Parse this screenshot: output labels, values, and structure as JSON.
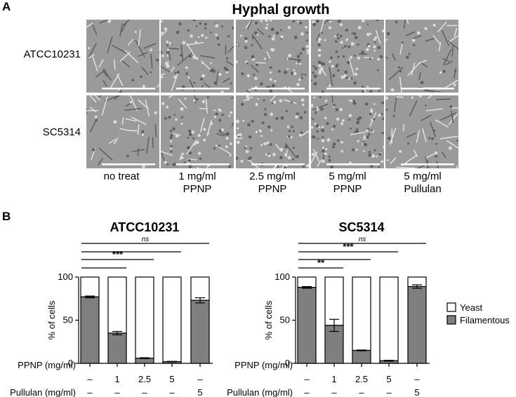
{
  "panel_a": {
    "letter": "A",
    "title": "Hyphal growth",
    "rows": [
      "ATCC10231",
      "SC5314"
    ],
    "columns": [
      {
        "line1": "no treat",
        "line2": ""
      },
      {
        "line1": "1 mg/ml",
        "line2": "PPNP"
      },
      {
        "line1": "2.5 mg/ml",
        "line2": "PPNP"
      },
      {
        "line1": "5 mg/ml",
        "line2": "PPNP"
      },
      {
        "line1": "5 mg/ml",
        "line2": "Pullulan"
      }
    ]
  },
  "panel_b": {
    "letter": "B",
    "legend": {
      "yeast": "Yeast",
      "filamentous": "Filamentous"
    },
    "colors": {
      "filamentous": "#7f7f7f",
      "yeast": "#ffffff"
    },
    "row_labels": {
      "ppnp": "PPNP (mg/ml)",
      "pullulan": "Pullulan (mg/ml)"
    },
    "ppnp_values": [
      "–",
      "1",
      "2.5",
      "5",
      "–"
    ],
    "pullulan_values": [
      "–",
      "–",
      "–",
      "–",
      "5"
    ]
  },
  "chart_data": [
    {
      "type": "bar",
      "stacked": true,
      "title": "ATCC10231",
      "ylabel": "% of cells",
      "ylim": [
        0,
        100
      ],
      "yticks": [
        0,
        50,
        100
      ],
      "categories": [
        "no treat",
        "1 mg/ml PPNP",
        "2.5 mg/ml PPNP",
        "5 mg/ml PPNP",
        "5 mg/ml Pullulan"
      ],
      "series": [
        {
          "name": "Filamentous",
          "values": [
            77,
            35,
            6,
            2,
            73
          ],
          "errors": [
            1,
            2,
            0.5,
            0.3,
            3
          ]
        },
        {
          "name": "Yeast",
          "values": [
            23,
            65,
            94,
            98,
            27
          ]
        }
      ],
      "significance": [
        {
          "label": "ns",
          "to_category": 4
        },
        {
          "label": "",
          "to_category": 3
        },
        {
          "label": "***",
          "to_category": 2
        },
        {
          "label": "",
          "to_category": 1
        }
      ]
    },
    {
      "type": "bar",
      "stacked": true,
      "title": "SC5314",
      "ylabel": "% of cells",
      "ylim": [
        0,
        100
      ],
      "yticks": [
        0,
        50,
        100
      ],
      "categories": [
        "no treat",
        "1 mg/ml PPNP",
        "2.5 mg/ml PPNP",
        "5 mg/ml PPNP",
        "5 mg/ml Pullulan"
      ],
      "series": [
        {
          "name": "Filamentous",
          "values": [
            88,
            44,
            15,
            3,
            89
          ],
          "errors": [
            1,
            7,
            0.5,
            0.5,
            2
          ]
        },
        {
          "name": "Yeast",
          "values": [
            12,
            56,
            85,
            97,
            11
          ]
        }
      ],
      "significance": [
        {
          "label": "ns",
          "to_category": 4
        },
        {
          "label": "***",
          "to_category": 3
        },
        {
          "label": "",
          "to_category": 2
        },
        {
          "label": "**",
          "to_category": 1
        }
      ]
    }
  ]
}
